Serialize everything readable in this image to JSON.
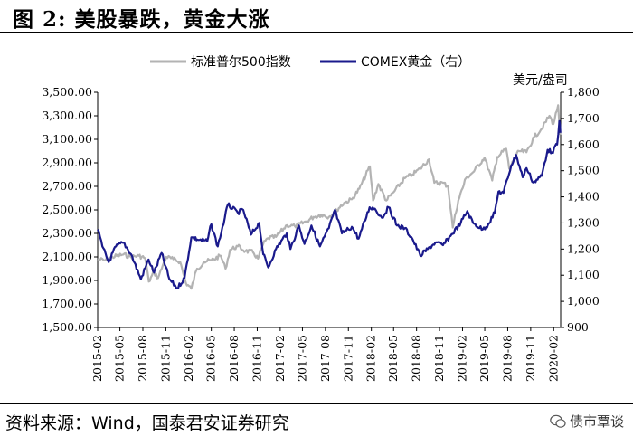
{
  "header": {
    "title": "图 2:  美股暴跌，黄金大涨"
  },
  "footer": {
    "source": "资料来源：Wind，国泰君安证券研究",
    "watermark": "债市覃谈",
    "watermark_icon": "wechat-icon"
  },
  "chart_data": {
    "type": "line",
    "title": "",
    "y_left_range": [
      1500,
      3500
    ],
    "y_right_range": [
      900,
      1800
    ],
    "y_right_unit": "美元/盎司",
    "x_ticks": [
      "2015-02",
      "2015-05",
      "2015-08",
      "2015-11",
      "2016-02",
      "2016-05",
      "2016-08",
      "2016-11",
      "2017-02",
      "2017-05",
      "2017-08",
      "2017-11",
      "2018-02",
      "2018-05",
      "2018-08",
      "2018-11",
      "2019-02",
      "2019-05",
      "2019-08",
      "2019-11",
      "2020-02"
    ],
    "y_left_ticks": [
      "1,500.00",
      "1,700.00",
      "1,900.00",
      "2,100.00",
      "2,300.00",
      "2,500.00",
      "2,700.00",
      "2,900.00",
      "3,100.00",
      "3,300.00",
      "3,500.00"
    ],
    "y_right_ticks": [
      "900",
      "1,000",
      "1,100",
      "1,200",
      "1,300",
      "1,400",
      "1,500",
      "1,600",
      "1,700",
      "1,800"
    ],
    "legend_position": "top",
    "colors": {
      "sp500": "#b3b3b3",
      "gold": "#1a1a8c"
    },
    "series": [
      {
        "name": "标准普尔500指数",
        "axis": "left",
        "points": [
          [
            "2015-02-01",
            2080
          ],
          [
            "2015-03-01",
            2070
          ],
          [
            "2015-04-01",
            2100
          ],
          [
            "2015-05-15",
            2120
          ],
          [
            "2015-06-15",
            2100
          ],
          [
            "2015-07-15",
            2110
          ],
          [
            "2015-08-10",
            2090
          ],
          [
            "2015-08-25",
            1890
          ],
          [
            "2015-09-15",
            1970
          ],
          [
            "2015-10-01",
            1920
          ],
          [
            "2015-10-20",
            2030
          ],
          [
            "2015-11-03",
            2100
          ],
          [
            "2015-12-01",
            2080
          ],
          [
            "2015-12-28",
            2060
          ],
          [
            "2016-01-20",
            1880
          ],
          [
            "2016-02-11",
            1830
          ],
          [
            "2016-03-01",
            1980
          ],
          [
            "2016-04-01",
            2060
          ],
          [
            "2016-05-01",
            2070
          ],
          [
            "2016-06-08",
            2110
          ],
          [
            "2016-06-27",
            2000
          ],
          [
            "2016-07-15",
            2160
          ],
          [
            "2016-08-15",
            2190
          ],
          [
            "2016-09-15",
            2150
          ],
          [
            "2016-10-15",
            2140
          ],
          [
            "2016-11-04",
            2085
          ],
          [
            "2016-11-25",
            2210
          ],
          [
            "2016-12-15",
            2260
          ],
          [
            "2017-01-15",
            2270
          ],
          [
            "2017-02-28",
            2370
          ],
          [
            "2017-04-01",
            2360
          ],
          [
            "2017-05-15",
            2400
          ],
          [
            "2017-06-15",
            2440
          ],
          [
            "2017-07-15",
            2460
          ],
          [
            "2017-08-15",
            2440
          ],
          [
            "2017-09-15",
            2500
          ],
          [
            "2017-10-15",
            2560
          ],
          [
            "2017-11-15",
            2590
          ],
          [
            "2017-12-15",
            2680
          ],
          [
            "2018-01-26",
            2870
          ],
          [
            "2018-02-08",
            2580
          ],
          [
            "2018-03-01",
            2720
          ],
          [
            "2018-04-02",
            2580
          ],
          [
            "2018-05-01",
            2650
          ],
          [
            "2018-06-15",
            2770
          ],
          [
            "2018-07-15",
            2800
          ],
          [
            "2018-08-15",
            2850
          ],
          [
            "2018-09-20",
            2930
          ],
          [
            "2018-10-11",
            2730
          ],
          [
            "2018-11-15",
            2730
          ],
          [
            "2018-12-05",
            2700
          ],
          [
            "2018-12-24",
            2350
          ],
          [
            "2019-01-15",
            2580
          ],
          [
            "2019-02-15",
            2770
          ],
          [
            "2019-03-15",
            2820
          ],
          [
            "2019-04-30",
            2945
          ],
          [
            "2019-05-31",
            2750
          ],
          [
            "2019-06-20",
            2950
          ],
          [
            "2019-07-26",
            3020
          ],
          [
            "2019-08-07",
            2850
          ],
          [
            "2019-09-15",
            3000
          ],
          [
            "2019-10-15",
            2990
          ],
          [
            "2019-11-15",
            3120
          ],
          [
            "2019-12-15",
            3190
          ],
          [
            "2020-01-15",
            3300
          ],
          [
            "2020-01-31",
            3230
          ],
          [
            "2020-02-19",
            3390
          ],
          [
            "2020-02-27",
            3140
          ]
        ]
      },
      {
        "name": "COMEX黄金（右）",
        "axis": "right",
        "points": [
          [
            "2015-02-01",
            1275
          ],
          [
            "2015-02-20",
            1210
          ],
          [
            "2015-03-17",
            1150
          ],
          [
            "2015-04-15",
            1210
          ],
          [
            "2015-05-15",
            1225
          ],
          [
            "2015-06-15",
            1180
          ],
          [
            "2015-07-24",
            1085
          ],
          [
            "2015-08-24",
            1160
          ],
          [
            "2015-09-15",
            1110
          ],
          [
            "2015-10-15",
            1185
          ],
          [
            "2015-11-15",
            1085
          ],
          [
            "2015-12-17",
            1050
          ],
          [
            "2016-01-15",
            1090
          ],
          [
            "2016-02-11",
            1245
          ],
          [
            "2016-03-15",
            1235
          ],
          [
            "2016-04-15",
            1230
          ],
          [
            "2016-05-01",
            1295
          ],
          [
            "2016-05-27",
            1210
          ],
          [
            "2016-06-24",
            1320
          ],
          [
            "2016-07-06",
            1370
          ],
          [
            "2016-08-15",
            1340
          ],
          [
            "2016-09-06",
            1350
          ],
          [
            "2016-10-07",
            1255
          ],
          [
            "2016-11-09",
            1300
          ],
          [
            "2016-11-25",
            1180
          ],
          [
            "2016-12-15",
            1130
          ],
          [
            "2017-01-15",
            1200
          ],
          [
            "2017-02-27",
            1260
          ],
          [
            "2017-03-14",
            1200
          ],
          [
            "2017-04-17",
            1290
          ],
          [
            "2017-05-09",
            1220
          ],
          [
            "2017-06-06",
            1290
          ],
          [
            "2017-07-10",
            1210
          ],
          [
            "2017-08-15",
            1280
          ],
          [
            "2017-09-08",
            1350
          ],
          [
            "2017-10-06",
            1260
          ],
          [
            "2017-11-15",
            1285
          ],
          [
            "2017-12-12",
            1240
          ],
          [
            "2018-01-25",
            1360
          ],
          [
            "2018-02-15",
            1355
          ],
          [
            "2018-03-15",
            1320
          ],
          [
            "2018-04-11",
            1360
          ],
          [
            "2018-05-15",
            1290
          ],
          [
            "2018-06-15",
            1280
          ],
          [
            "2018-07-15",
            1240
          ],
          [
            "2018-08-16",
            1175
          ],
          [
            "2018-09-15",
            1200
          ],
          [
            "2018-10-15",
            1225
          ],
          [
            "2018-11-15",
            1215
          ],
          [
            "2018-12-15",
            1250
          ],
          [
            "2019-01-25",
            1300
          ],
          [
            "2019-02-20",
            1345
          ],
          [
            "2019-03-15",
            1300
          ],
          [
            "2019-04-23",
            1275
          ],
          [
            "2019-05-15",
            1295
          ],
          [
            "2019-06-10",
            1340
          ],
          [
            "2019-06-25",
            1420
          ],
          [
            "2019-07-15",
            1415
          ],
          [
            "2019-08-15",
            1520
          ],
          [
            "2019-09-04",
            1560
          ],
          [
            "2019-09-30",
            1475
          ],
          [
            "2019-10-15",
            1510
          ],
          [
            "2019-11-12",
            1455
          ],
          [
            "2019-12-15",
            1480
          ],
          [
            "2020-01-08",
            1580
          ],
          [
            "2020-01-25",
            1570
          ],
          [
            "2020-02-15",
            1600
          ],
          [
            "2020-02-24",
            1690
          ],
          [
            "2020-02-28",
            1645
          ]
        ]
      }
    ]
  }
}
